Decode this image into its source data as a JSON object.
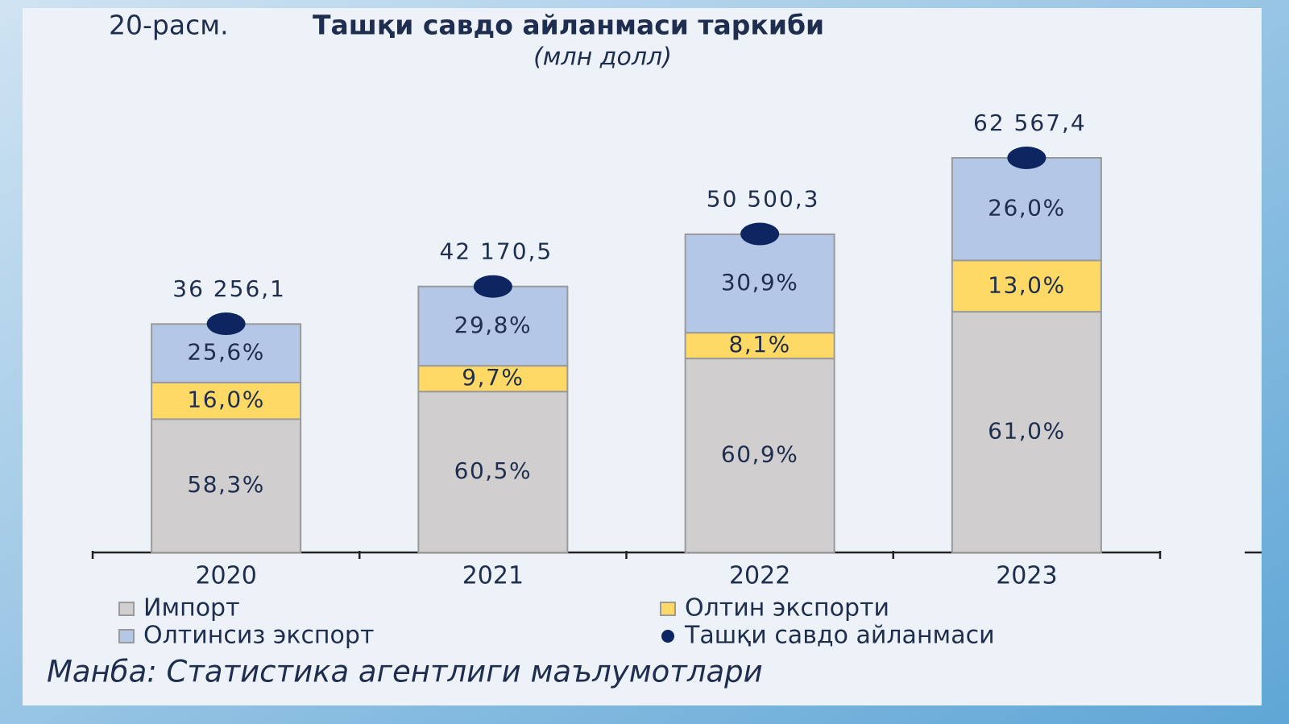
{
  "chart_data": {
    "type": "bar",
    "stacked": true,
    "figure_label": "20-расм.",
    "title": "Ташқи савдо айланмаси таркиби",
    "subtitle": "(млн долл)",
    "source": "Манба: Статистика агентлиги маълумотлари",
    "categories": [
      "2020",
      "2021",
      "2022",
      "2023"
    ],
    "series": [
      {
        "name": "Импорт",
        "color": "#d0cece",
        "values": [
          58.3,
          60.5,
          60.9,
          61.0
        ],
        "value_labels": [
          "58,3%",
          "60,5%",
          "60,9%",
          "61,0%"
        ]
      },
      {
        "name": "Олтин экспорти",
        "color": "#ffd966",
        "values": [
          16.0,
          9.7,
          8.1,
          13.0
        ],
        "value_labels": [
          "16,0%",
          "9,7%",
          "8,1%",
          "13,0%"
        ]
      },
      {
        "name": "Олтинсиз экспорт",
        "color": "#b4c7e7",
        "values": [
          25.6,
          29.8,
          30.9,
          26.0
        ],
        "value_labels": [
          "25,6%",
          "29,8%",
          "30,9%",
          "26,0%"
        ]
      },
      {
        "name": "Ташқи савдо айланмаси",
        "type": "scatter",
        "color": "#0d2561",
        "values": [
          36256.1,
          42170.5,
          50500.3,
          62567.4
        ],
        "value_labels": [
          "36 256,1",
          "42 170,5",
          "50 500,3",
          "62 567,4"
        ]
      }
    ]
  }
}
